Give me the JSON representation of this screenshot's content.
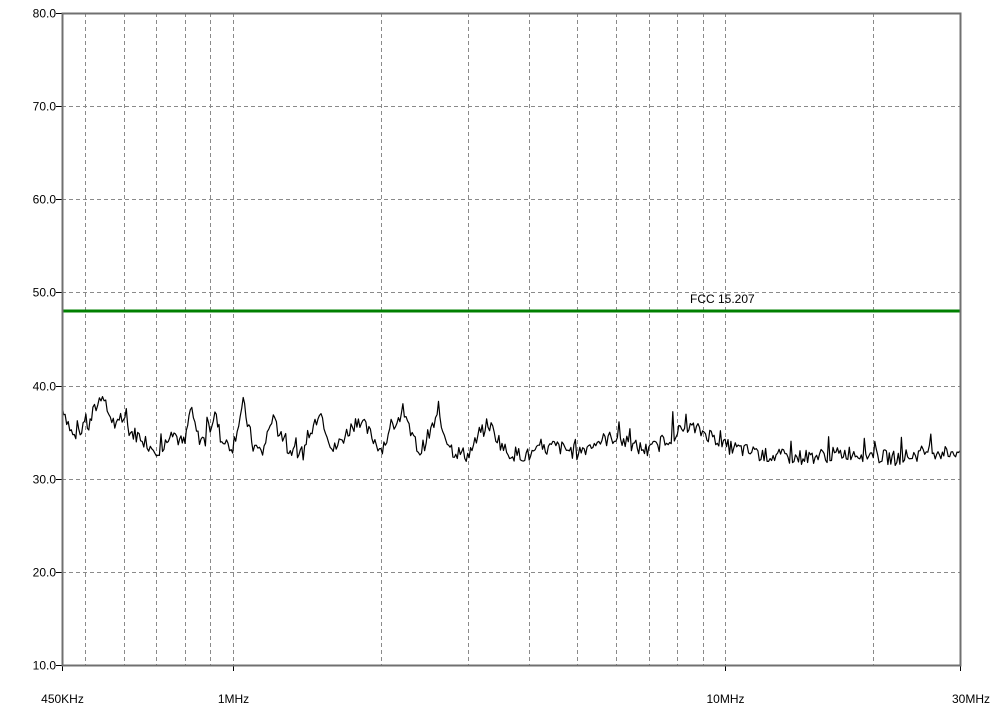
{
  "chart_data": {
    "type": "line",
    "title": "",
    "xlabel": "",
    "ylabel": "",
    "x_scale": "log",
    "xlim_hz": [
      450000,
      30000000
    ],
    "ylim": [
      10,
      80
    ],
    "y_ticks": [
      {
        "value": 80,
        "label": "80.0"
      },
      {
        "value": 70,
        "label": "70.0"
      },
      {
        "value": 60,
        "label": "60.0"
      },
      {
        "value": 50,
        "label": "50.0"
      },
      {
        "value": 40,
        "label": "40.0"
      },
      {
        "value": 30,
        "label": "30.0"
      },
      {
        "value": 20,
        "label": "20.0"
      },
      {
        "value": 10,
        "label": "10.0"
      }
    ],
    "x_ticks": [
      {
        "value": 450000,
        "label": "450KHz"
      },
      {
        "value": 1000000,
        "label": "1MHz"
      },
      {
        "value": 10000000,
        "label": "10MHz"
      },
      {
        "value": 30000000,
        "label": "30MHz"
      }
    ],
    "x_gridlines_hz": [
      500000,
      600000,
      700000,
      800000,
      900000,
      1000000,
      2000000,
      3000000,
      4000000,
      5000000,
      6000000,
      7000000,
      8000000,
      9000000,
      10000000,
      20000000
    ],
    "grid": "dashed",
    "limit_line": {
      "name": "FCC 15.207",
      "value": 48,
      "color": "#008000"
    },
    "series": [
      {
        "color": "#000000",
        "points": [
          [
            450000,
            38.0
          ],
          [
            460000,
            36.5
          ],
          [
            470000,
            35.0
          ],
          [
            480000,
            34.2
          ],
          [
            490000,
            34.8
          ],
          [
            500000,
            36.5
          ],
          [
            510000,
            35.5
          ],
          [
            520000,
            37.0
          ],
          [
            540000,
            38.8
          ],
          [
            560000,
            37.0
          ],
          [
            580000,
            35.5
          ],
          [
            600000,
            36.5
          ],
          [
            620000,
            35.0
          ],
          [
            650000,
            34.5
          ],
          [
            680000,
            33.5
          ],
          [
            720000,
            33.0
          ],
          [
            750000,
            35.5
          ],
          [
            780000,
            34.0
          ],
          [
            800000,
            33.8
          ],
          [
            820000,
            37.5
          ],
          [
            850000,
            34.5
          ],
          [
            880000,
            34.0
          ],
          [
            920000,
            37.0
          ],
          [
            950000,
            34.0
          ],
          [
            1000000,
            33.5
          ],
          [
            1050000,
            38.0
          ],
          [
            1100000,
            33.5
          ],
          [
            1150000,
            32.8
          ],
          [
            1200000,
            36.5
          ],
          [
            1300000,
            33.0
          ],
          [
            1400000,
            32.8
          ],
          [
            1500000,
            37.5
          ],
          [
            1600000,
            33.0
          ],
          [
            1800000,
            36.5
          ],
          [
            2000000,
            33.2
          ],
          [
            2200000,
            37.0
          ],
          [
            2400000,
            32.8
          ],
          [
            2600000,
            36.5
          ],
          [
            2800000,
            33.0
          ],
          [
            3000000,
            32.5
          ],
          [
            3300000,
            36.0
          ],
          [
            3600000,
            32.8
          ],
          [
            4000000,
            32.5
          ],
          [
            4500000,
            33.5
          ],
          [
            5000000,
            32.8
          ],
          [
            5500000,
            34.0
          ],
          [
            6000000,
            34.5
          ],
          [
            6500000,
            33.5
          ],
          [
            7000000,
            33.0
          ],
          [
            7500000,
            34.0
          ],
          [
            8000000,
            35.0
          ],
          [
            8500000,
            35.5
          ],
          [
            9000000,
            35.0
          ],
          [
            9500000,
            34.5
          ],
          [
            10000000,
            33.5
          ],
          [
            11000000,
            33.0
          ],
          [
            12000000,
            32.5
          ],
          [
            14000000,
            32.3
          ],
          [
            16000000,
            32.5
          ],
          [
            18000000,
            32.8
          ],
          [
            20000000,
            32.5
          ],
          [
            22000000,
            32.2
          ],
          [
            24000000,
            32.5
          ],
          [
            26000000,
            33.0
          ],
          [
            28000000,
            32.8
          ],
          [
            30000000,
            33.0
          ]
        ]
      }
    ]
  }
}
